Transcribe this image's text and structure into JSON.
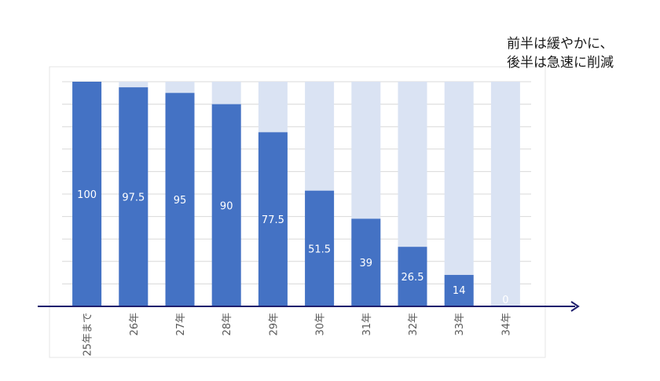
{
  "chart_data": {
    "type": "bar",
    "categories": [
      "25年まで",
      "26年",
      "27年",
      "28年",
      "29年",
      "30年",
      "31年",
      "32年",
      "33年",
      "34年"
    ],
    "values": [
      100,
      97.5,
      95,
      90,
      77.5,
      51.5,
      39,
      26.5,
      14,
      0
    ],
    "value_labels": [
      "100",
      "97.5",
      "95",
      "90",
      "77.5",
      "51.5",
      "39",
      "26.5",
      "14",
      "0"
    ],
    "ylim": [
      0,
      100
    ],
    "grid": true,
    "background_bar_value": 100,
    "annotation": [
      "前半は緩やかに、",
      "後半は急速に削減"
    ],
    "colors": {
      "bar": "#4472c4",
      "background_bar": "#dae3f3",
      "axis": "#1f1f6e",
      "gridline": "#d9d9d9",
      "label_inside": "#ffffff",
      "tick_label": "#595959"
    }
  }
}
